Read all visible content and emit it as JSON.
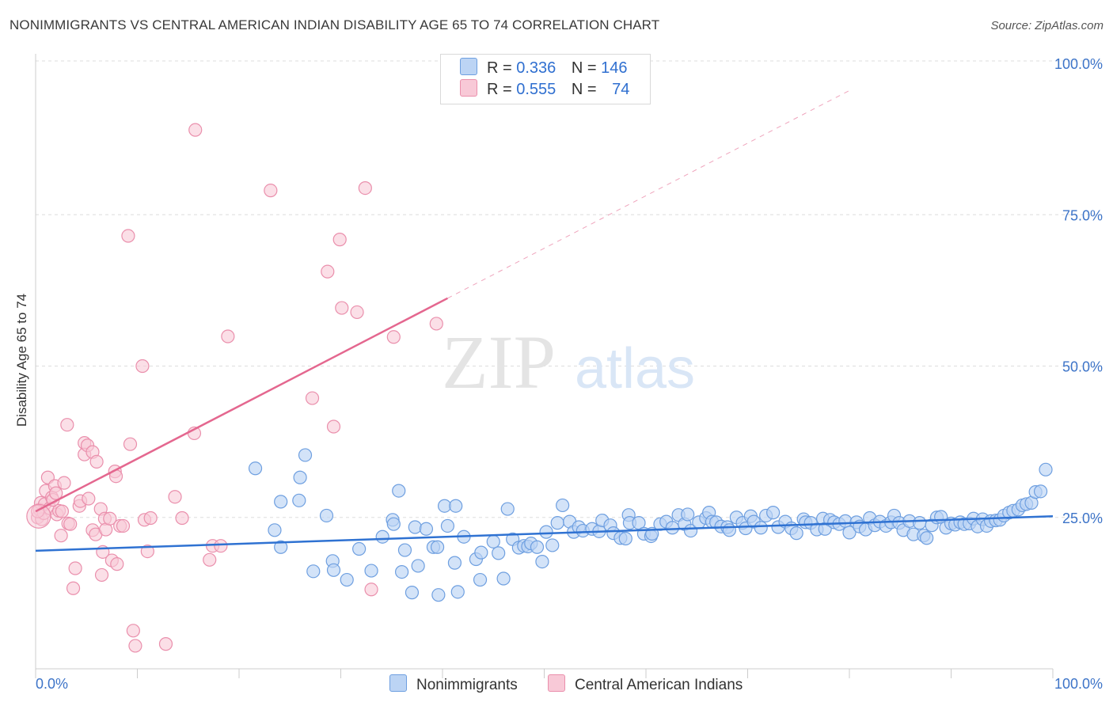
{
  "title": "NONIMMIGRANTS VS CENTRAL AMERICAN INDIAN DISABILITY AGE 65 TO 74 CORRELATION CHART",
  "source": "Source: ZipAtlas.com",
  "watermark": {
    "zip": "ZIP",
    "atlas": "atlas"
  },
  "colors": {
    "blue_fill": "#bcd4f4",
    "blue_stroke": "#6e9fe0",
    "blue_line": "#2f72d2",
    "pink_fill": "#f8c9d7",
    "pink_stroke": "#ea8fac",
    "pink_line": "#e4678f",
    "axis_label": "#3d74c8",
    "grid": "#dddddd"
  },
  "legend": {
    "rows": [
      {
        "r_label": "R =",
        "r_value": "0.336",
        "n_label": "N =",
        "n_value": "146"
      },
      {
        "r_label": "R =",
        "r_value": "0.555",
        "n_label": "N =",
        "n_value": "74"
      }
    ]
  },
  "bottom_legend": [
    "Nonimmigrants",
    "Central American Indians"
  ],
  "chart_data": {
    "type": "scatter",
    "title": "NONIMMIGRANTS VS CENTRAL AMERICAN INDIAN DISABILITY AGE 65 TO 74 CORRELATION CHART",
    "xlabel": "",
    "ylabel": "Disability Age 65 to 74",
    "xlim": [
      0,
      100
    ],
    "ylim": [
      0,
      100
    ],
    "x_tick_labels": [
      "0.0%",
      "100.0%"
    ],
    "y_tick_labels": [
      "25.0%",
      "50.0%",
      "75.0%",
      "100.0%"
    ],
    "y_ticks": [
      25,
      50,
      75,
      100
    ],
    "grid": "horizontal dashed",
    "legend_position": "top-center",
    "series": [
      {
        "name": "Nonimmigrants",
        "r": 0.336,
        "n": 146,
        "trend": {
          "x0": 0,
          "y0": 19.5,
          "x1": 100,
          "y1": 25.2
        },
        "points": [
          [
            21.6,
            33.1
          ],
          [
            26.5,
            35.3
          ],
          [
            26.0,
            31.6
          ],
          [
            24.1,
            27.6
          ],
          [
            25.9,
            27.8
          ],
          [
            28.6,
            25.3
          ],
          [
            23.5,
            22.9
          ],
          [
            24.1,
            20.1
          ],
          [
            27.3,
            16.1
          ],
          [
            29.2,
            17.8
          ],
          [
            29.3,
            16.3
          ],
          [
            30.6,
            14.7
          ],
          [
            31.8,
            19.8
          ],
          [
            33.0,
            16.2
          ],
          [
            34.1,
            21.8
          ],
          [
            35.1,
            24.6
          ],
          [
            35.2,
            23.9
          ],
          [
            35.7,
            29.4
          ],
          [
            36.0,
            16.0
          ],
          [
            36.3,
            19.6
          ],
          [
            37.0,
            12.6
          ],
          [
            37.3,
            23.4
          ],
          [
            37.6,
            17.0
          ],
          [
            38.4,
            23.1
          ],
          [
            39.1,
            20.1
          ],
          [
            39.6,
            12.2
          ],
          [
            39.5,
            20.1
          ],
          [
            40.2,
            26.9
          ],
          [
            40.5,
            23.6
          ],
          [
            41.3,
            26.9
          ],
          [
            41.5,
            12.7
          ],
          [
            41.2,
            17.5
          ],
          [
            42.1,
            21.8
          ],
          [
            43.3,
            18.1
          ],
          [
            43.8,
            19.2
          ],
          [
            43.7,
            14.7
          ],
          [
            45.0,
            21.0
          ],
          [
            45.5,
            19.1
          ],
          [
            46.0,
            14.9
          ],
          [
            46.4,
            26.4
          ],
          [
            46.9,
            21.4
          ],
          [
            47.5,
            20.0
          ],
          [
            48.0,
            20.3
          ],
          [
            48.4,
            20.2
          ],
          [
            48.7,
            20.7
          ],
          [
            49.3,
            20.1
          ],
          [
            49.8,
            17.7
          ],
          [
            50.8,
            20.4
          ],
          [
            50.2,
            22.6
          ],
          [
            51.3,
            24.1
          ],
          [
            51.8,
            27.0
          ],
          [
            52.5,
            24.3
          ],
          [
            52.9,
            22.6
          ],
          [
            53.4,
            23.4
          ],
          [
            53.8,
            22.8
          ],
          [
            54.7,
            23.1
          ],
          [
            55.4,
            22.7
          ],
          [
            55.7,
            24.5
          ],
          [
            56.5,
            23.7
          ],
          [
            56.8,
            22.4
          ],
          [
            57.5,
            21.6
          ],
          [
            58.0,
            21.5
          ],
          [
            58.3,
            25.4
          ],
          [
            58.4,
            24.1
          ],
          [
            59.3,
            24.1
          ],
          [
            59.8,
            22.3
          ],
          [
            60.5,
            21.9
          ],
          [
            60.6,
            22.3
          ],
          [
            61.4,
            23.9
          ],
          [
            62.0,
            24.3
          ],
          [
            62.6,
            23.3
          ],
          [
            63.2,
            25.4
          ],
          [
            63.8,
            23.9
          ],
          [
            64.1,
            25.5
          ],
          [
            64.4,
            22.8
          ],
          [
            65.2,
            24.2
          ],
          [
            65.9,
            24.9
          ],
          [
            66.2,
            25.8
          ],
          [
            66.5,
            24.3
          ],
          [
            66.9,
            24.2
          ],
          [
            67.4,
            23.5
          ],
          [
            68.0,
            23.4
          ],
          [
            68.2,
            22.9
          ],
          [
            68.9,
            25.0
          ],
          [
            69.5,
            24.1
          ],
          [
            69.8,
            23.2
          ],
          [
            70.3,
            25.2
          ],
          [
            70.6,
            24.3
          ],
          [
            71.3,
            23.3
          ],
          [
            71.8,
            25.3
          ],
          [
            72.5,
            25.8
          ],
          [
            73.0,
            23.4
          ],
          [
            73.7,
            24.3
          ],
          [
            74.3,
            23.2
          ],
          [
            74.8,
            22.4
          ],
          [
            75.5,
            24.7
          ],
          [
            75.7,
            24.2
          ],
          [
            76.2,
            24.1
          ],
          [
            76.8,
            23.0
          ],
          [
            77.4,
            24.8
          ],
          [
            77.6,
            23.1
          ],
          [
            78.1,
            24.6
          ],
          [
            78.5,
            24.2
          ],
          [
            79.0,
            23.9
          ],
          [
            79.6,
            24.4
          ],
          [
            80.0,
            22.5
          ],
          [
            80.7,
            24.2
          ],
          [
            81.0,
            23.5
          ],
          [
            81.6,
            23.0
          ],
          [
            82.0,
            24.9
          ],
          [
            82.5,
            23.7
          ],
          [
            83.0,
            24.3
          ],
          [
            83.6,
            23.6
          ],
          [
            84.1,
            24.2
          ],
          [
            84.4,
            25.3
          ],
          [
            84.9,
            24.1
          ],
          [
            85.3,
            22.9
          ],
          [
            85.9,
            24.4
          ],
          [
            86.3,
            22.2
          ],
          [
            86.9,
            24.1
          ],
          [
            87.3,
            22.0
          ],
          [
            87.6,
            21.6
          ],
          [
            88.1,
            23.7
          ],
          [
            88.6,
            25.0
          ],
          [
            89.0,
            25.1
          ],
          [
            89.5,
            23.3
          ],
          [
            90.0,
            24.0
          ],
          [
            90.4,
            23.8
          ],
          [
            90.9,
            24.2
          ],
          [
            91.3,
            23.9
          ],
          [
            91.8,
            24.0
          ],
          [
            92.2,
            24.8
          ],
          [
            92.6,
            23.5
          ],
          [
            93.1,
            24.7
          ],
          [
            93.5,
            23.6
          ],
          [
            93.9,
            24.4
          ],
          [
            94.4,
            24.5
          ],
          [
            94.8,
            24.6
          ],
          [
            95.2,
            25.3
          ],
          [
            95.7,
            25.8
          ],
          [
            96.1,
            26.1
          ],
          [
            96.6,
            26.3
          ],
          [
            97.0,
            27.0
          ],
          [
            97.4,
            27.2
          ],
          [
            97.9,
            27.4
          ],
          [
            98.3,
            29.2
          ],
          [
            98.8,
            29.3
          ],
          [
            99.3,
            32.9
          ]
        ]
      },
      {
        "name": "Central American Indians",
        "r": 0.555,
        "n": 74,
        "trend": {
          "x0": 0,
          "y0": 26.0,
          "x1": 40.5,
          "y1": 61.2,
          "dash_to_x": 80,
          "dash_to_y": 95.5
        },
        "points": [
          [
            0.2,
            25.0
          ],
          [
            0.4,
            26.3
          ],
          [
            0.5,
            27.4
          ],
          [
            0.6,
            24.7
          ],
          [
            0.8,
            25.7
          ],
          [
            0.9,
            27.2
          ],
          [
            1.0,
            29.4
          ],
          [
            1.2,
            31.6
          ],
          [
            1.4,
            26.5
          ],
          [
            1.6,
            28.3
          ],
          [
            1.7,
            27.9
          ],
          [
            1.9,
            30.2
          ],
          [
            2.0,
            29.0
          ],
          [
            2.1,
            25.5
          ],
          [
            2.3,
            26.1
          ],
          [
            2.5,
            22.0
          ],
          [
            2.6,
            26.0
          ],
          [
            2.8,
            30.7
          ],
          [
            3.1,
            40.3
          ],
          [
            3.2,
            24.0
          ],
          [
            3.4,
            23.9
          ],
          [
            3.7,
            13.3
          ],
          [
            3.9,
            16.6
          ],
          [
            4.3,
            26.9
          ],
          [
            4.4,
            27.7
          ],
          [
            4.8,
            37.3
          ],
          [
            4.8,
            35.4
          ],
          [
            5.1,
            36.9
          ],
          [
            5.2,
            28.1
          ],
          [
            5.6,
            22.9
          ],
          [
            5.6,
            35.8
          ],
          [
            5.9,
            22.2
          ],
          [
            6.0,
            34.2
          ],
          [
            6.4,
            26.4
          ],
          [
            6.5,
            15.5
          ],
          [
            6.6,
            19.3
          ],
          [
            6.8,
            24.8
          ],
          [
            6.9,
            23.0
          ],
          [
            7.3,
            24.8
          ],
          [
            7.5,
            17.9
          ],
          [
            7.8,
            32.6
          ],
          [
            7.9,
            31.8
          ],
          [
            8.0,
            17.3
          ],
          [
            8.3,
            23.6
          ],
          [
            8.6,
            23.6
          ],
          [
            9.1,
            71.5
          ],
          [
            9.3,
            37.1
          ],
          [
            9.6,
            6.3
          ],
          [
            9.8,
            3.8
          ],
          [
            10.5,
            50.0
          ],
          [
            10.7,
            24.6
          ],
          [
            11.0,
            19.4
          ],
          [
            11.3,
            24.9
          ],
          [
            12.8,
            4.1
          ],
          [
            13.7,
            28.4
          ],
          [
            14.4,
            24.9
          ],
          [
            15.6,
            38.9
          ],
          [
            15.7,
            89.0
          ],
          [
            17.1,
            18.0
          ],
          [
            17.4,
            20.3
          ],
          [
            18.2,
            20.3
          ],
          [
            18.9,
            54.9
          ],
          [
            23.1,
            79.0
          ],
          [
            28.7,
            65.6
          ],
          [
            27.2,
            44.7
          ],
          [
            29.3,
            40.0
          ],
          [
            29.9,
            70.9
          ],
          [
            30.1,
            59.6
          ],
          [
            31.6,
            58.9
          ],
          [
            32.4,
            79.4
          ],
          [
            33.0,
            13.1
          ],
          [
            35.2,
            54.8
          ],
          [
            39.4,
            57.0
          ],
          [
            0.2,
            26.0
          ]
        ]
      }
    ]
  }
}
